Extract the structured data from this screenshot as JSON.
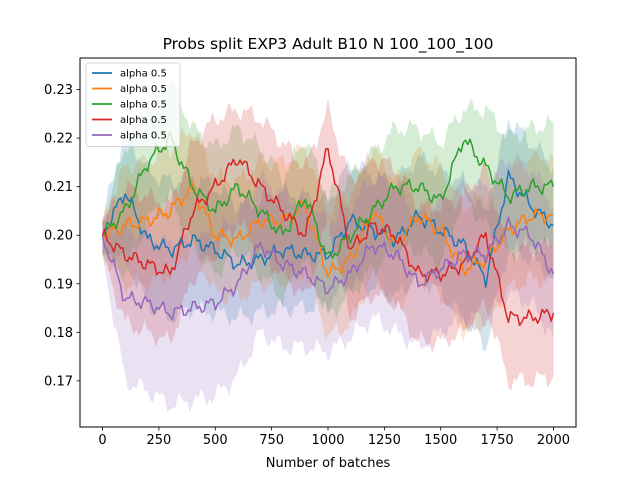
{
  "chart_data": {
    "type": "line",
    "title": "Probs split EXP3 Adult B10 N 100_100_100",
    "xlabel": "Number of batches",
    "ylabel": "",
    "xlim": [
      -100,
      2100
    ],
    "ylim": [
      0.1605,
      0.2365
    ],
    "x_ticks": [
      0,
      250,
      500,
      750,
      1000,
      1250,
      1500,
      1750,
      2000
    ],
    "y_ticks": [
      0.17,
      0.18,
      0.19,
      0.2,
      0.21,
      0.22,
      0.23
    ],
    "x_tick_labels": [
      "0",
      "250",
      "500",
      "750",
      "1000",
      "1250",
      "1500",
      "1750",
      "2000"
    ],
    "y_tick_labels": [
      "0.17",
      "0.18",
      "0.19",
      "0.20",
      "0.21",
      "0.22",
      "0.23"
    ],
    "grid": false,
    "legend_position": "top-left",
    "shaded_band": "min/max range around each series",
    "series": [
      {
        "name": "alpha 0.5",
        "color": "#1f77b4",
        "x": [
          0,
          100,
          200,
          300,
          400,
          500,
          600,
          700,
          800,
          900,
          1000,
          1100,
          1200,
          1300,
          1400,
          1500,
          1600,
          1700,
          1800,
          1900,
          2000
        ],
        "y": [
          0.2,
          0.209,
          0.199,
          0.197,
          0.199,
          0.197,
          0.194,
          0.195,
          0.197,
          0.196,
          0.196,
          0.203,
          0.201,
          0.199,
          0.204,
          0.201,
          0.198,
          0.191,
          0.212,
          0.206,
          0.202
        ],
        "y_low": [
          0.196,
          0.195,
          0.186,
          0.183,
          0.185,
          0.184,
          0.183,
          0.184,
          0.185,
          0.185,
          0.186,
          0.19,
          0.189,
          0.187,
          0.192,
          0.188,
          0.183,
          0.177,
          0.197,
          0.195,
          0.191
        ],
        "y_high": [
          0.203,
          0.222,
          0.213,
          0.211,
          0.212,
          0.21,
          0.206,
          0.207,
          0.209,
          0.208,
          0.207,
          0.215,
          0.212,
          0.211,
          0.216,
          0.213,
          0.211,
          0.204,
          0.224,
          0.219,
          0.214
        ]
      },
      {
        "name": "alpha 0.5",
        "color": "#ff7f0e",
        "x": [
          0,
          100,
          200,
          300,
          400,
          500,
          600,
          700,
          800,
          900,
          1000,
          1100,
          1200,
          1300,
          1400,
          1500,
          1600,
          1700,
          1800,
          1900,
          2000
        ],
        "y": [
          0.2,
          0.202,
          0.203,
          0.205,
          0.21,
          0.2,
          0.199,
          0.203,
          0.203,
          0.206,
          0.192,
          0.195,
          0.205,
          0.198,
          0.204,
          0.201,
          0.193,
          0.195,
          0.201,
          0.204,
          0.204
        ],
        "y_low": [
          0.196,
          0.19,
          0.19,
          0.192,
          0.198,
          0.188,
          0.187,
          0.19,
          0.19,
          0.193,
          0.179,
          0.182,
          0.192,
          0.185,
          0.191,
          0.188,
          0.18,
          0.182,
          0.189,
          0.191,
          0.191
        ],
        "y_high": [
          0.203,
          0.214,
          0.215,
          0.218,
          0.222,
          0.212,
          0.211,
          0.215,
          0.215,
          0.218,
          0.205,
          0.208,
          0.218,
          0.211,
          0.217,
          0.214,
          0.206,
          0.208,
          0.213,
          0.216,
          0.216
        ]
      },
      {
        "name": "alpha 0.5",
        "color": "#2ca02c",
        "x": [
          0,
          100,
          200,
          300,
          400,
          500,
          600,
          700,
          800,
          900,
          1000,
          1100,
          1200,
          1300,
          1400,
          1500,
          1600,
          1700,
          1800,
          1900,
          2000
        ],
        "y": [
          0.2,
          0.205,
          0.215,
          0.22,
          0.21,
          0.205,
          0.21,
          0.205,
          0.2,
          0.208,
          0.195,
          0.2,
          0.205,
          0.21,
          0.21,
          0.207,
          0.22,
          0.214,
          0.208,
          0.21,
          0.21
        ],
        "y_low": [
          0.196,
          0.192,
          0.203,
          0.208,
          0.198,
          0.192,
          0.197,
          0.192,
          0.187,
          0.195,
          0.183,
          0.188,
          0.193,
          0.197,
          0.197,
          0.194,
          0.208,
          0.202,
          0.196,
          0.198,
          0.198
        ],
        "y_high": [
          0.203,
          0.218,
          0.227,
          0.232,
          0.222,
          0.218,
          0.222,
          0.218,
          0.212,
          0.22,
          0.208,
          0.212,
          0.217,
          0.222,
          0.222,
          0.219,
          0.226,
          0.226,
          0.22,
          0.222,
          0.223
        ]
      },
      {
        "name": "alpha 0.5",
        "color": "#d62728",
        "x": [
          0,
          100,
          200,
          300,
          400,
          500,
          600,
          700,
          800,
          900,
          1000,
          1100,
          1200,
          1300,
          1400,
          1500,
          1600,
          1700,
          1800,
          1900,
          2000
        ],
        "y": [
          0.2,
          0.196,
          0.194,
          0.192,
          0.205,
          0.21,
          0.216,
          0.21,
          0.205,
          0.2,
          0.218,
          0.197,
          0.202,
          0.2,
          0.192,
          0.192,
          0.194,
          0.2,
          0.183,
          0.183,
          0.184
        ],
        "y_low": [
          0.196,
          0.182,
          0.18,
          0.178,
          0.191,
          0.196,
          0.203,
          0.196,
          0.192,
          0.187,
          0.203,
          0.183,
          0.188,
          0.186,
          0.178,
          0.178,
          0.18,
          0.186,
          0.17,
          0.17,
          0.171
        ],
        "y_high": [
          0.203,
          0.21,
          0.208,
          0.206,
          0.219,
          0.224,
          0.226,
          0.224,
          0.219,
          0.214,
          0.226,
          0.211,
          0.216,
          0.214,
          0.206,
          0.206,
          0.208,
          0.214,
          0.197,
          0.197,
          0.198
        ]
      },
      {
        "name": "alpha 0.5",
        "color": "#9467bd",
        "x": [
          0,
          100,
          200,
          300,
          400,
          500,
          600,
          700,
          800,
          900,
          1000,
          1100,
          1200,
          1300,
          1400,
          1500,
          1600,
          1700,
          1800,
          1900,
          2000
        ],
        "y": [
          0.2,
          0.187,
          0.186,
          0.184,
          0.185,
          0.186,
          0.19,
          0.198,
          0.194,
          0.192,
          0.189,
          0.192,
          0.198,
          0.196,
          0.19,
          0.193,
          0.196,
          0.196,
          0.202,
          0.2,
          0.192
        ],
        "y_low": [
          0.196,
          0.17,
          0.168,
          0.165,
          0.166,
          0.167,
          0.171,
          0.18,
          0.177,
          0.177,
          0.176,
          0.179,
          0.183,
          0.18,
          0.177,
          0.18,
          0.183,
          0.183,
          0.188,
          0.186,
          0.179
        ],
        "y_high": [
          0.203,
          0.201,
          0.2,
          0.198,
          0.199,
          0.2,
          0.204,
          0.212,
          0.208,
          0.206,
          0.203,
          0.206,
          0.212,
          0.21,
          0.204,
          0.207,
          0.21,
          0.21,
          0.216,
          0.214,
          0.206
        ]
      }
    ]
  }
}
